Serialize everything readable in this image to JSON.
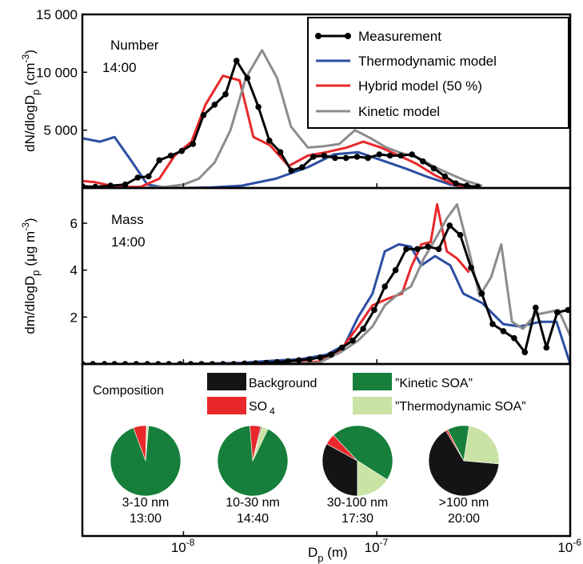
{
  "chart_data": [
    {
      "type": "line",
      "panel": "number",
      "label": "Number",
      "time": "14:00",
      "ylabel": "dN/dlogD",
      "ylabel_sub": "p",
      "ylabel_unit": "(cm",
      "ylabel_unit_sup": "-3",
      "ylabel_unit_end": ")",
      "xscale": "log",
      "xlim": [
        3e-09,
        1e-06
      ],
      "ylim": [
        0,
        15000
      ],
      "yticks": [
        5000,
        10000,
        15000
      ],
      "ytick_labels": [
        "5 000",
        "10 000",
        "15 000"
      ],
      "legend": {
        "placement": "top-right",
        "entries": [
          "Measurement",
          "Thermodynamic model",
          "Hybrid  model (50 %)",
          "Kinetic model"
        ]
      },
      "series": [
        {
          "name": "Measurement",
          "color": "#000000",
          "markers": true,
          "x": [
            3e-09,
            3.5e-09,
            4.2e-09,
            5e-09,
            5.8e-09,
            6.6e-09,
            7.5e-09,
            8.6e-09,
            9.8e-09,
            1.12e-08,
            1.27e-08,
            1.45e-08,
            1.65e-08,
            1.88e-08,
            2.14e-08,
            2.44e-08,
            2.78e-08,
            3.17e-08,
            3.61e-08,
            4.11e-08,
            4.69e-08,
            5.34e-08,
            6.08e-08,
            6.93e-08,
            7.9e-08,
            9e-08,
            1.03e-07,
            1.17e-07,
            1.33e-07,
            1.52e-07,
            1.73e-07,
            1.97e-07,
            2.25e-07,
            2.56e-07,
            2.92e-07,
            3.32e-07
          ],
          "y": [
            150,
            100,
            200,
            300,
            900,
            1000,
            2400,
            2800,
            3200,
            3800,
            6300,
            7200,
            8100,
            11000,
            9500,
            7000,
            4100,
            3100,
            1500,
            1800,
            2700,
            2800,
            2600,
            2600,
            2700,
            2600,
            2900,
            2800,
            2800,
            2900,
            2300,
            1700,
            1000,
            400,
            200,
            100
          ]
        },
        {
          "name": "Thermodynamic model",
          "color": "#2b4ea2",
          "markers": false,
          "x": [
            3e-09,
            3.7e-09,
            4.4e-09,
            5.4e-09,
            6.5e-09,
            8e-09,
            1e-08,
            1.4e-08,
            2e-08,
            3e-08,
            4.4e-08,
            6e-08,
            8e-08,
            1.1e-07,
            1.4e-07,
            1.8e-07,
            2.4e-07,
            3.2e-07
          ],
          "y": [
            4300,
            4000,
            4400,
            2300,
            300,
            50,
            0,
            50,
            200,
            800,
            1800,
            2900,
            3100,
            2300,
            1700,
            1000,
            300,
            0
          ]
        },
        {
          "name": "Hybrid  model (50 %)",
          "color": "#e8282a",
          "markers": false,
          "x": [
            3e-09,
            3.5e-09,
            4.2e-09,
            5e-09,
            6e-09,
            7.5e-09,
            9e-09,
            1.1e-08,
            1.3e-08,
            1.6e-08,
            1.95e-08,
            2.3e-08,
            2.8e-08,
            3.5e-08,
            4.4e-08,
            5.5e-08,
            7e-08,
            8.5e-08,
            1.05e-07,
            1.3e-07,
            1.6e-07,
            2e-07,
            2.5e-07,
            3.2e-07
          ],
          "y": [
            600,
            500,
            200,
            100,
            100,
            800,
            2800,
            4000,
            7200,
            9700,
            9300,
            4400,
            3700,
            1900,
            2800,
            3100,
            3500,
            4000,
            3500,
            2800,
            2100,
            1100,
            300,
            0
          ]
        },
        {
          "name": "Kinetic model",
          "color": "#8c8c8c",
          "markers": false,
          "x": [
            3e-09,
            4e-09,
            6e-09,
            8e-09,
            1e-08,
            1.2e-08,
            1.45e-08,
            1.75e-08,
            2.1e-08,
            2.55e-08,
            3.05e-08,
            3.6e-08,
            4.4e-08,
            5.3e-08,
            6.4e-08,
            7.7e-08,
            9.3e-08,
            1.12e-07,
            1.35e-07,
            1.65e-07,
            2e-07,
            2.4e-07,
            2.9e-07,
            3.5e-07
          ],
          "y": [
            0,
            0,
            0,
            100,
            300,
            800,
            2200,
            5000,
            9500,
            11900,
            9500,
            5300,
            3500,
            3600,
            3800,
            5000,
            4300,
            3500,
            3000,
            2600,
            1800,
            1200,
            600,
            200
          ]
        }
      ]
    },
    {
      "type": "line",
      "panel": "mass",
      "label": "Mass",
      "time": "14:00",
      "ylabel": "dm/dlogD",
      "ylabel_sub": "p",
      "ylabel_unit": "(μg m",
      "ylabel_unit_sup": "-3",
      "ylabel_unit_end": ")",
      "xscale": "log",
      "xlim": [
        3e-09,
        1e-06
      ],
      "ylim": [
        0,
        7.5
      ],
      "yticks": [
        2,
        4,
        6
      ],
      "ytick_labels": [
        "2",
        "4",
        "6"
      ],
      "xticks": [
        1e-08,
        1e-07,
        1e-06
      ],
      "xtick_base": "10",
      "xtick_exps": [
        "-8",
        "-7",
        "-6"
      ],
      "xlabel": "D",
      "xlabel_sub": "p",
      "xlabel_unit": " (m)",
      "series": [
        {
          "name": "Measurement",
          "color": "#000000",
          "markers": true,
          "x": [
            3e-09,
            3.4e-09,
            3.9e-09,
            4.4e-09,
            5e-09,
            5.7e-09,
            6.5e-09,
            7.4e-09,
            8.4e-09,
            9.6e-09,
            1.09e-08,
            1.24e-08,
            1.41e-08,
            1.6e-08,
            1.82e-08,
            2.07e-08,
            2.36e-08,
            2.68e-08,
            3.05e-08,
            3.47e-08,
            3.95e-08,
            4.49e-08,
            5.1e-08,
            5.8e-08,
            6.6e-08,
            7.5e-08,
            8.5e-08,
            9.7e-08,
            1.1e-07,
            1.25e-07,
            1.42e-07,
            1.62e-07,
            1.84e-07,
            2.09e-07,
            2.38e-07,
            2.7e-07,
            3.07e-07,
            3.49e-07,
            3.97e-07,
            4.51e-07,
            5.13e-07,
            5.83e-07,
            6.63e-07,
            7.54e-07,
            8.57e-07,
            9.74e-07
          ],
          "y": [
            0,
            0,
            0,
            0,
            0,
            0,
            0,
            0,
            0,
            0,
            0,
            0,
            0,
            0,
            0,
            0.02,
            0.03,
            0.05,
            0.08,
            0.12,
            0.16,
            0.2,
            0.28,
            0.4,
            0.7,
            1.0,
            1.5,
            2.3,
            3.3,
            4.0,
            4.9,
            4.9,
            5.0,
            4.9,
            5.9,
            5.5,
            4.1,
            3.0,
            1.7,
            1.4,
            1.1,
            0.5,
            2.4,
            0.7,
            2.2,
            2.3
          ]
        },
        {
          "name": "Thermodynamic model",
          "color": "#2b4ea2",
          "markers": false,
          "x": [
            3e-09,
            1e-08,
            2e-08,
            3e-08,
            4e-08,
            5.5e-08,
            6.8e-08,
            8e-08,
            9.5e-08,
            1.1e-07,
            1.3e-07,
            1.5e-07,
            1.7e-07,
            2e-07,
            2.4e-07,
            2.8e-07,
            3.5e-07,
            4.5e-07,
            5.5e-07,
            7e-07,
            8.5e-07,
            1e-06
          ],
          "y": [
            0,
            0,
            0.05,
            0.15,
            0.2,
            0.4,
            0.8,
            2.0,
            3.0,
            4.8,
            5.1,
            5.0,
            4.2,
            4.6,
            4.2,
            3.0,
            2.6,
            1.7,
            1.6,
            1.8,
            1.8,
            0
          ]
        },
        {
          "name": "Hybrid  model (50 %)",
          "color": "#e8282a",
          "markers": false,
          "x": [
            3e-09,
            1e-08,
            3e-08,
            5e-08,
            6.5e-08,
            8e-08,
            9.5e-08,
            1.15e-07,
            1.35e-07,
            1.5e-07,
            1.7e-07,
            1.9e-07,
            2.05e-07,
            2.3e-07,
            2.6e-07,
            3e-07
          ],
          "y": [
            0,
            0,
            0.02,
            0.1,
            0.6,
            1.6,
            2.5,
            2.8,
            3.0,
            4.1,
            5.1,
            5.2,
            6.8,
            4.8,
            4.5,
            3.9
          ]
        },
        {
          "name": "Kinetic model",
          "color": "#8c8c8c",
          "markers": false,
          "x": [
            3e-09,
            1e-08,
            3e-08,
            5e-08,
            6.5e-08,
            8e-08,
            9.5e-08,
            1.1e-07,
            1.3e-07,
            1.5e-07,
            1.75e-07,
            2e-07,
            2.3e-07,
            2.6e-07,
            3e-07,
            3.4e-07,
            3.9e-07,
            4.4e-07,
            5e-07,
            5.7e-07,
            6.6e-07,
            7.6e-07,
            8.7e-07,
            1e-06
          ],
          "y": [
            0,
            0,
            0.02,
            0.05,
            0.5,
            1.0,
            1.6,
            2.5,
            3.0,
            3.3,
            4.5,
            5.3,
            6.2,
            6.8,
            4.8,
            2.9,
            3.7,
            5.1,
            1.8,
            1.5,
            2.1,
            2.2,
            2.3,
            1.2
          ]
        }
      ]
    },
    {
      "type": "pie",
      "panel": "composition",
      "label": "Composition",
      "legend": [
        {
          "name": "Background",
          "color": "#141414"
        },
        {
          "name": "SO",
          "sub": "4",
          "color": "#e8282a"
        },
        {
          "name": "”Kinetic SOA”",
          "color": "#167f3b"
        },
        {
          "name": "”Thermodynamic SOA”",
          "color": "#c9e3a4"
        }
      ],
      "pies": [
        {
          "size": "3-10 nm",
          "time": "13:00",
          "values": {
            "Background": 0.002,
            "SO4": 0.06,
            "Kinetic SOA": 0.93,
            "Thermodynamic SOA": 0.008
          }
        },
        {
          "size": "10-30 nm",
          "time": "14:40",
          "values": {
            "Background": 0.005,
            "SO4": 0.05,
            "Kinetic SOA": 0.915,
            "Thermodynamic SOA": 0.03
          }
        },
        {
          "size": "30-100 nm",
          "time": "17:30",
          "values": {
            "Background": 0.33,
            "SO4": 0.05,
            "Kinetic SOA": 0.46,
            "Thermodynamic SOA": 0.16
          }
        },
        {
          "size": ">100 nm",
          "time": "20:00",
          "values": {
            "Background": 0.65,
            "SO4": 0.01,
            "Kinetic SOA": 0.1,
            "Thermodynamic SOA": 0.24
          }
        }
      ]
    }
  ]
}
